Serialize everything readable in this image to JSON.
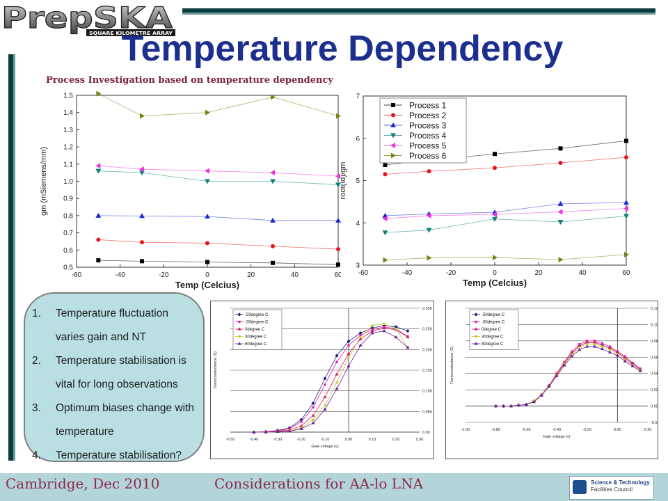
{
  "logo": {
    "text": "PrepSKA",
    "tagline": "SQUARE KILOMETRE ARRAY"
  },
  "title": "Temperature Dependency",
  "subtitle": "Process Investigation based on temperature dependency",
  "bullets": [
    {
      "num": "1.",
      "text": "Temperature fluctuation varies gain and NT"
    },
    {
      "num": "2.",
      "text": "Temperature stabilisation is vital for long observations"
    },
    {
      "num": "3.",
      "text": "Optimum biases change with temperature"
    },
    {
      "num": "4.",
      "text": "Temperature stabilisation?"
    }
  ],
  "footer": {
    "left": "Cambridge, Dec 2010",
    "right": "Considerations for AA-lo LNA"
  },
  "stfc_logo": {
    "line1": "Science & Technology",
    "line2": "Facilities Council"
  },
  "chart_data": [
    {
      "type": "line",
      "xlabel": "Temp (Celcius)",
      "ylabel": "gm (mSiemens/mm)",
      "xlim": [
        -60,
        60
      ],
      "ylim": [
        0.5,
        1.5
      ],
      "xticks": [
        -60,
        -40,
        -20,
        0,
        20,
        40,
        60
      ],
      "yticks": [
        0.5,
        0.6,
        0.7,
        0.8,
        0.9,
        1.0,
        1.1,
        1.2,
        1.3,
        1.4,
        1.5
      ],
      "ytick_labels": [
        "0.5",
        "0.6",
        "0.7",
        "0.8",
        "0.9",
        "1.0",
        "1.1",
        "1.2",
        "1.3",
        "1.4",
        "1.5"
      ],
      "x": [
        -50,
        -30,
        0,
        30,
        60
      ],
      "series": [
        {
          "name": "Process 1",
          "marker": "square",
          "color": "#000000",
          "values": [
            0.54,
            0.535,
            0.53,
            0.525,
            0.515
          ]
        },
        {
          "name": "Process 2",
          "marker": "circle",
          "color": "#e8141b",
          "values": [
            0.66,
            0.645,
            0.64,
            0.622,
            0.605
          ]
        },
        {
          "name": "Process 3",
          "marker": "triangle-up",
          "color": "#1a2bd6",
          "values": [
            0.8,
            0.798,
            0.795,
            0.772,
            0.772
          ]
        },
        {
          "name": "Process 4",
          "marker": "triangle-down",
          "color": "#0f7f7f",
          "values": [
            1.06,
            1.05,
            1.0,
            1.0,
            0.98
          ]
        },
        {
          "name": "Process 5",
          "marker": "triangle-left",
          "color": "#f02fe0",
          "values": [
            1.09,
            1.07,
            1.06,
            1.05,
            1.03
          ]
        },
        {
          "name": "Process 6",
          "marker": "triangle-right",
          "color": "#7f7f16",
          "values": [
            1.51,
            1.38,
            1.4,
            1.49,
            1.38
          ]
        }
      ]
    },
    {
      "type": "line",
      "xlabel": "Temp (Celcius)",
      "ylabel": "root(Id)/gm",
      "xlim": [
        -60,
        60
      ],
      "ylim": [
        3,
        7
      ],
      "xticks": [
        -60,
        -40,
        -20,
        0,
        20,
        40,
        60
      ],
      "yticks": [
        3,
        4,
        5,
        6,
        7
      ],
      "ytick_labels": [
        "3",
        "4",
        "5",
        "6",
        "7"
      ],
      "legend": "top-left",
      "x": [
        -50,
        -30,
        0,
        30,
        60
      ],
      "series": [
        {
          "name": "Process 1",
          "marker": "square",
          "color": "#000000",
          "values": [
            5.37,
            5.48,
            5.63,
            5.76,
            5.94
          ]
        },
        {
          "name": "Process 2",
          "marker": "circle",
          "color": "#e8141b",
          "values": [
            5.15,
            5.22,
            5.3,
            5.42,
            5.55
          ]
        },
        {
          "name": "Process 3",
          "marker": "triangle-up",
          "color": "#1a2bd6",
          "values": [
            4.17,
            4.21,
            4.25,
            4.45,
            4.48
          ]
        },
        {
          "name": "Process 4",
          "marker": "triangle-down",
          "color": "#0f7f7f",
          "values": [
            3.77,
            3.83,
            4.09,
            4.02,
            4.16
          ]
        },
        {
          "name": "Process 5",
          "marker": "triangle-left",
          "color": "#f02fe0",
          "values": [
            4.1,
            4.17,
            4.2,
            4.26,
            4.34
          ]
        },
        {
          "name": "Process 6",
          "marker": "triangle-right",
          "color": "#7f7f16",
          "values": [
            3.12,
            3.17,
            3.18,
            3.13,
            3.25
          ]
        }
      ]
    },
    {
      "type": "line",
      "xlabel": "Gate voltage (v)",
      "ylabel": "Transconductance (S)",
      "xlim": [
        -0.5,
        0.3
      ],
      "ylim": [
        0,
        0.3
      ],
      "xticks": [
        -0.5,
        -0.4,
        -0.3,
        -0.2,
        -0.1,
        0.0,
        0.1,
        0.2,
        0.3
      ],
      "xtick_labels": [
        "-0.50",
        "-0.40",
        "-0.30",
        "-0.20",
        "-0.10",
        "0.00",
        "0.10",
        "0.20",
        "0.30"
      ],
      "yticks": [
        0,
        0.05,
        0.1,
        0.15,
        0.2,
        0.25,
        0.3
      ],
      "ytick_labels": [
        "0.00",
        "0.050",
        "0.100",
        "0.150",
        "0.200",
        "0.250",
        "0.300"
      ],
      "legend": "top-left",
      "x": [
        -0.4,
        -0.35,
        -0.3,
        -0.25,
        -0.2,
        -0.15,
        -0.1,
        -0.05,
        0.0,
        0.05,
        0.1,
        0.15,
        0.2,
        0.25
      ],
      "series": [
        {
          "name": "-50degree C",
          "marker": "diamond",
          "color": "#1a237e",
          "values": [
            0.0,
            0.001,
            0.004,
            0.01,
            0.03,
            0.07,
            0.13,
            0.185,
            0.22,
            0.24,
            0.252,
            0.258,
            0.255,
            0.245
          ]
        },
        {
          "name": "-30degree C",
          "marker": "square",
          "color": "#e91ea8",
          "values": [
            0.0,
            0.001,
            0.003,
            0.008,
            0.025,
            0.06,
            0.115,
            0.17,
            0.21,
            0.235,
            0.248,
            0.255,
            0.25,
            0.232
          ]
        },
        {
          "name": "0degree C",
          "marker": "triangle-up",
          "color": "#d81b60",
          "values": [
            0.0,
            0.0,
            0.002,
            0.005,
            0.015,
            0.04,
            0.085,
            0.14,
            0.19,
            0.225,
            0.245,
            0.252,
            0.248,
            0.23
          ]
        },
        {
          "name": "30degree C",
          "marker": "square",
          "color": "#c0ca33",
          "values": [
            0.0,
            0.0,
            0.001,
            0.003,
            0.01,
            0.03,
            0.065,
            0.12,
            0.18,
            0.23,
            0.258,
            0.262,
            0.25,
            0.205
          ]
        },
        {
          "name": "60degree C",
          "marker": "triangle-up",
          "color": "#6a1b9a",
          "values": [
            0.0,
            0.0,
            0.001,
            0.002,
            0.008,
            0.022,
            0.055,
            0.105,
            0.16,
            0.21,
            0.24,
            0.245,
            0.23,
            0.205
          ]
        }
      ]
    },
    {
      "type": "line",
      "xlabel": "Gate voltage (v)",
      "ylabel": "Transconductance (S)",
      "xlim": [
        -1.0,
        0.2
      ],
      "ylim": [
        -0.02,
        0.12
      ],
      "xticks": [
        -1.0,
        -0.8,
        -0.6,
        -0.4,
        -0.2,
        0.0,
        0.2
      ],
      "xtick_labels": [
        "-1.00",
        "-0.80",
        "-0.60",
        "-0.40",
        "-0.20",
        "0.00",
        "0.20"
      ],
      "yticks": [
        -0.02,
        0,
        0.02,
        0.04,
        0.06,
        0.08,
        0.1,
        0.12
      ],
      "ytick_labels": [
        "-0.020",
        "0.000",
        "0.020",
        "0.040",
        "0.060",
        "0.080",
        "0.100",
        "0.120"
      ],
      "legend": "top-left",
      "x": [
        -0.8,
        -0.75,
        -0.7,
        -0.65,
        -0.6,
        -0.55,
        -0.5,
        -0.45,
        -0.4,
        -0.35,
        -0.3,
        -0.25,
        -0.2,
        -0.15,
        -0.1,
        -0.05,
        0.0,
        0.05,
        0.1,
        0.15
      ],
      "series": [
        {
          "name": "-50degree C",
          "marker": "diamond",
          "color": "#1a237e",
          "values": [
            0.0,
            0.0,
            0.0,
            0.001,
            0.002,
            0.006,
            0.014,
            0.025,
            0.039,
            0.053,
            0.065,
            0.074,
            0.078,
            0.078,
            0.075,
            0.071,
            0.066,
            0.059,
            0.052,
            0.045
          ]
        },
        {
          "name": "-30degree C",
          "marker": "square",
          "color": "#e91ea8",
          "values": [
            0.0,
            0.0,
            0.0,
            0.001,
            0.002,
            0.006,
            0.014,
            0.025,
            0.04,
            0.054,
            0.067,
            0.076,
            0.08,
            0.08,
            0.077,
            0.073,
            0.067,
            0.061,
            0.053,
            0.046
          ]
        },
        {
          "name": "0degree C",
          "marker": "triangle-up",
          "color": "#d81b60",
          "values": [
            0.0,
            0.0,
            0.0,
            0.001,
            0.002,
            0.006,
            0.014,
            0.025,
            0.039,
            0.053,
            0.065,
            0.074,
            0.078,
            0.078,
            0.075,
            0.071,
            0.066,
            0.059,
            0.052,
            0.045
          ]
        },
        {
          "name": "30degree C",
          "marker": "square",
          "color": "#c0ca33",
          "values": [
            0.0,
            0.0,
            0.0,
            0.001,
            0.002,
            0.006,
            0.014,
            0.024,
            0.038,
            0.052,
            0.063,
            0.072,
            0.076,
            0.076,
            0.073,
            0.069,
            0.064,
            0.057,
            0.05,
            0.044
          ]
        },
        {
          "name": "60degree C",
          "marker": "triangle-up",
          "color": "#6a1b9a",
          "values": [
            0.0,
            0.0,
            0.0,
            0.001,
            0.002,
            0.005,
            0.013,
            0.024,
            0.037,
            0.05,
            0.061,
            0.069,
            0.073,
            0.073,
            0.07,
            0.066,
            0.062,
            0.055,
            0.049,
            0.043
          ]
        }
      ]
    }
  ]
}
